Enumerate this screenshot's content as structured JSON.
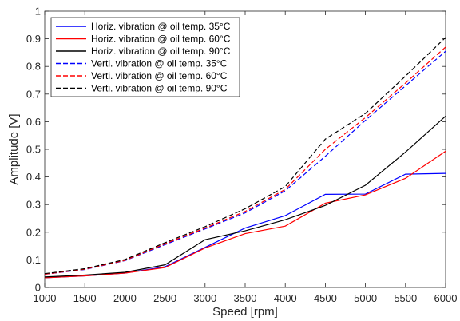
{
  "chart_data": {
    "type": "line",
    "xlabel": "Speed [rpm]",
    "ylabel": "Amplitude [V]",
    "xlim": [
      1000,
      6000
    ],
    "ylim": [
      0,
      1
    ],
    "grid": false,
    "legend_position": "top-left",
    "x": [
      1000,
      1500,
      2000,
      2500,
      3000,
      3500,
      4000,
      4500,
      5000,
      5500,
      6000
    ],
    "x_ticks": [
      "1000",
      "1500",
      "2000",
      "2500",
      "3000",
      "3500",
      "4000",
      "4500",
      "5000",
      "5500",
      "6000"
    ],
    "y_ticks": [
      "0",
      "0.1",
      "0.2",
      "0.3",
      "0.4",
      "0.5",
      "0.6",
      "0.7",
      "0.8",
      "0.9",
      "1"
    ],
    "series": [
      {
        "name": "Horiz. vibration @ oil temp. 35°C",
        "color": "#0000ff",
        "style": "solid",
        "values": [
          0.035,
          0.042,
          0.052,
          0.075,
          0.145,
          0.215,
          0.26,
          0.337,
          0.338,
          0.41,
          0.413
        ]
      },
      {
        "name": "Horiz. vibration @ oil temp. 60°C",
        "color": "#ff0000",
        "style": "solid",
        "values": [
          0.035,
          0.042,
          0.052,
          0.072,
          0.143,
          0.195,
          0.222,
          0.305,
          0.335,
          0.395,
          0.493
        ]
      },
      {
        "name": "Horiz. vibration @ oil temp. 90°C",
        "color": "#000000",
        "style": "solid",
        "values": [
          0.038,
          0.045,
          0.055,
          0.082,
          0.173,
          0.205,
          0.245,
          0.297,
          0.37,
          0.49,
          0.62
        ]
      },
      {
        "name": "Verti. vibration @ oil temp. 35°C",
        "color": "#0000ff",
        "style": "dashed",
        "values": [
          0.048,
          0.065,
          0.097,
          0.155,
          0.212,
          0.27,
          0.35,
          0.475,
          0.605,
          0.73,
          0.855
        ]
      },
      {
        "name": "Verti. vibration @ oil temp. 60°C",
        "color": "#ff0000",
        "style": "dashed",
        "values": [
          0.048,
          0.066,
          0.098,
          0.158,
          0.215,
          0.275,
          0.355,
          0.5,
          0.615,
          0.74,
          0.87
        ]
      },
      {
        "name": "Verti. vibration @ oil temp. 90°C",
        "color": "#000000",
        "style": "dashed",
        "values": [
          0.05,
          0.068,
          0.101,
          0.162,
          0.22,
          0.285,
          0.365,
          0.537,
          0.63,
          0.765,
          0.905
        ]
      }
    ]
  }
}
